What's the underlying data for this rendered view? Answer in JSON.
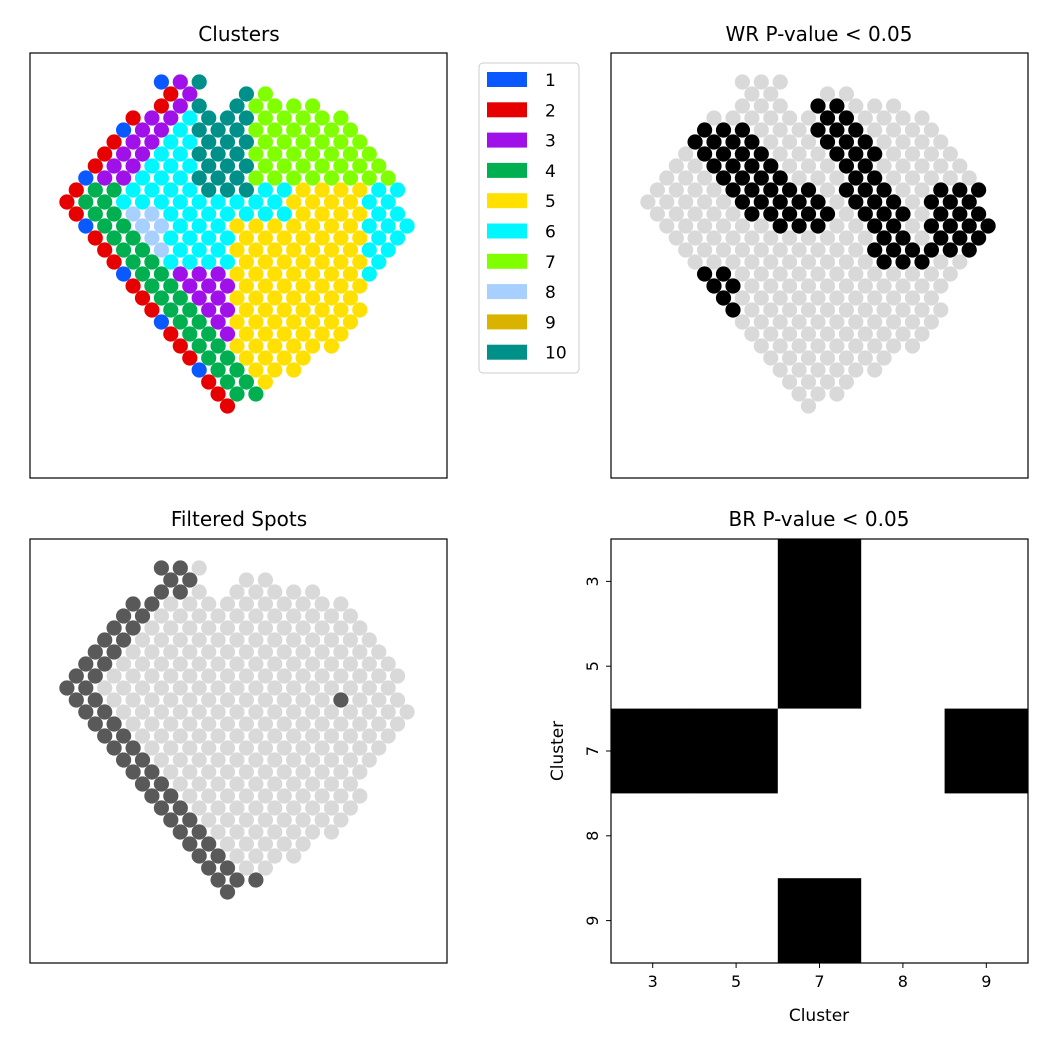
{
  "chart_data": [
    {
      "type": "scatter",
      "title": "Clusters",
      "legend": {
        "placement": "outside-right",
        "entries": [
          {
            "label": "1",
            "color": "#0a58ff"
          },
          {
            "label": "2",
            "color": "#e60000"
          },
          {
            "label": "3",
            "color": "#a010e8"
          },
          {
            "label": "4",
            "color": "#00b050"
          },
          {
            "label": "5",
            "color": "#ffe000"
          },
          {
            "label": "6",
            "color": "#00f7ff"
          },
          {
            "label": "7",
            "color": "#80ff00"
          },
          {
            "label": "8",
            "color": "#a8d0ff"
          },
          {
            "label": "9",
            "color": "#d9b300"
          },
          {
            "label": "10",
            "color": "#00908a"
          }
        ]
      },
      "axes_visible": false
    },
    {
      "type": "scatter",
      "title": "WR P-value < 0.05",
      "colors": {
        "significant": "#000000",
        "not_significant": "#d9d9d9"
      },
      "axes_visible": false
    },
    {
      "type": "scatter",
      "title": "Filtered Spots",
      "colors": {
        "filtered": "#595959",
        "kept": "#d9d9d9"
      },
      "axes_visible": false
    },
    {
      "type": "heatmap",
      "title": "BR P-value < 0.05",
      "xlabel": "Cluster",
      "ylabel": "Cluster",
      "x": [
        "3",
        "5",
        "7",
        "8",
        "9"
      ],
      "y": [
        "3",
        "5",
        "7",
        "8",
        "9"
      ],
      "values": [
        [
          0,
          0,
          1,
          0,
          0
        ],
        [
          0,
          0,
          1,
          0,
          0
        ],
        [
          1,
          1,
          0,
          0,
          1
        ],
        [
          0,
          0,
          0,
          0,
          0
        ],
        [
          0,
          0,
          1,
          0,
          0
        ]
      ],
      "colors": {
        "1": "#000000",
        "0": "#ffffff"
      }
    }
  ]
}
